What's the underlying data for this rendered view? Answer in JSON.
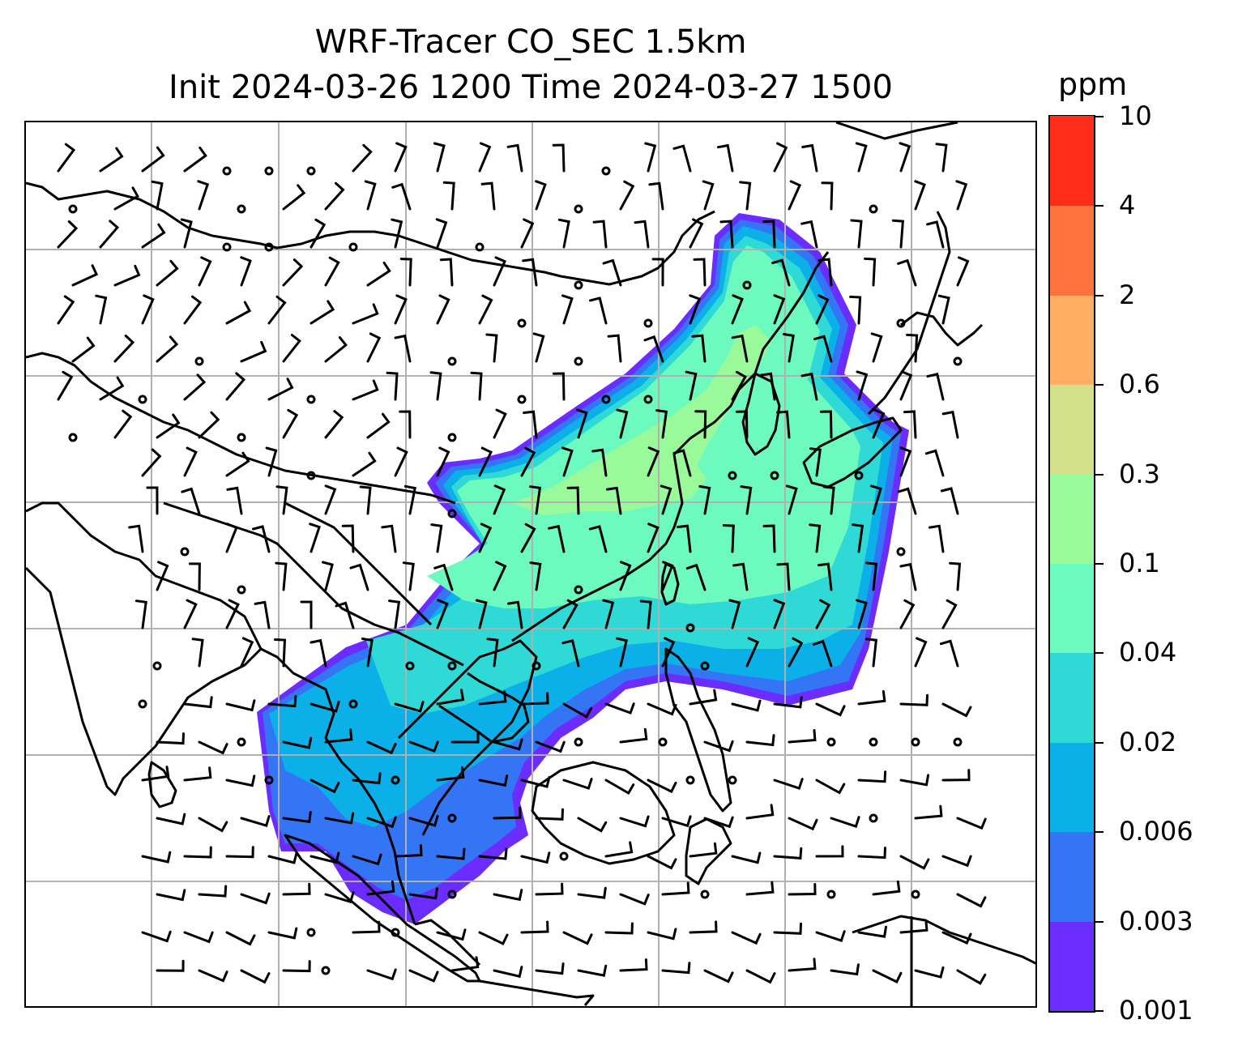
{
  "title": {
    "line1": "WRF-Tracer CO_SEC 1.5km",
    "line2": "Init 2024-03-26 1200 Time 2024-03-27 1500"
  },
  "colorbar": {
    "unit": "ppm",
    "levels": [
      "0.001",
      "0.003",
      "0.006",
      "0.02",
      "0.04",
      "0.1",
      "0.3",
      "0.6",
      "2",
      "4",
      "10"
    ],
    "colors": [
      "#6a2cff",
      "#3375f5",
      "#0bb0e8",
      "#2fd9d6",
      "#6cfabf",
      "#9afa9a",
      "#d2e08a",
      "#ffae62",
      "#ff713d",
      "#ff2c1a"
    ]
  },
  "map": {
    "field": "CO_SEC tracer concentration",
    "overlays": [
      "coastlines",
      "country borders",
      "lat-lon gridlines",
      "wind barbs"
    ],
    "gridline_color": "#b0b0b0",
    "coastline_color": "#000000"
  }
}
